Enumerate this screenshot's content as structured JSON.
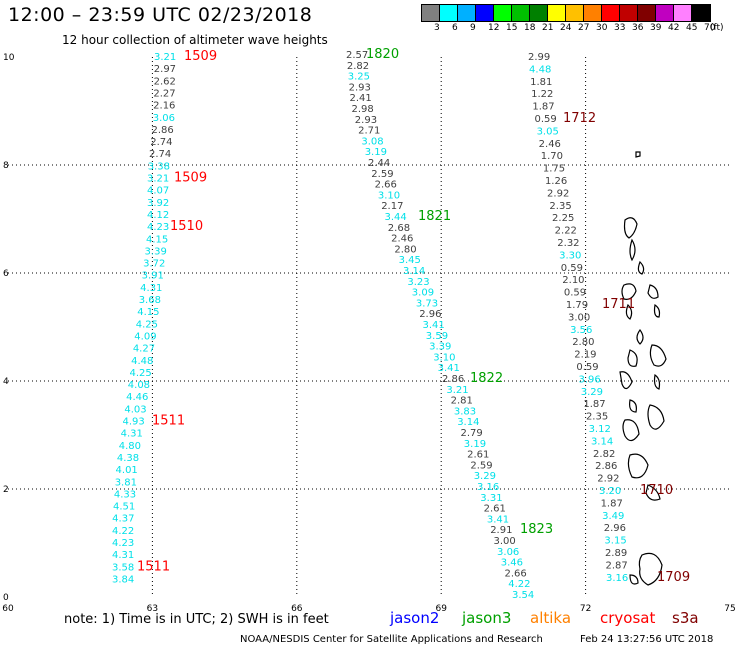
{
  "title": "12:00 – 23:59 UTC 02/23/2018",
  "subtitle": "12 hour collection of altimeter wave heights",
  "legend_scale": {
    "labels": [
      "3",
      "6",
      "9",
      "12",
      "15",
      "18",
      "21",
      "24",
      "27",
      "30",
      "33",
      "36",
      "39",
      "42",
      "45",
      "70",
      "(ft)"
    ],
    "colors": [
      "#808080",
      "#00ffff",
      "#00b0ff",
      "#0000ff",
      "#00ff00",
      "#00c000",
      "#008000",
      "#ffff00",
      "#ffc000",
      "#ff8000",
      "#ff0000",
      "#c00000",
      "#800000",
      "#c000c0",
      "#ff80ff",
      "#000000"
    ]
  },
  "chart_data": {
    "type": "scatter",
    "x_ticks": [
      "60",
      "63",
      "66",
      "69",
      "72",
      "75"
    ],
    "y_ticks": [
      "0",
      "2",
      "4",
      "6",
      "8",
      "10"
    ],
    "xlim": [
      60,
      75
    ],
    "ylim": [
      0,
      10
    ],
    "grid": true,
    "tracks": [
      {
        "values": [
          {
            "v": "3.21",
            "c": "cyan"
          },
          {
            "v": "2.97",
            "c": "gray"
          },
          {
            "v": "2.62",
            "c": "gray"
          },
          {
            "v": "2.27",
            "c": "gray"
          },
          {
            "v": "2.16",
            "c": "gray"
          },
          {
            "v": "3.06",
            "c": "cyan"
          },
          {
            "v": "2.86",
            "c": "gray"
          },
          {
            "v": "2.74",
            "c": "gray"
          },
          {
            "v": "2.74",
            "c": "gray"
          },
          {
            "v": "3.38",
            "c": "cyan"
          },
          {
            "v": "3.21",
            "c": "cyan"
          },
          {
            "v": "4.07",
            "c": "cyan"
          },
          {
            "v": "3.92",
            "c": "cyan"
          },
          {
            "v": "4.12",
            "c": "cyan"
          },
          {
            "v": "4.23",
            "c": "cyan"
          },
          {
            "v": "4.15",
            "c": "cyan"
          },
          {
            "v": "3.39",
            "c": "cyan"
          },
          {
            "v": "3.72",
            "c": "cyan"
          },
          {
            "v": "3.91",
            "c": "cyan"
          },
          {
            "v": "4.31",
            "c": "cyan"
          },
          {
            "v": "3.68",
            "c": "cyan"
          },
          {
            "v": "4.15",
            "c": "cyan"
          },
          {
            "v": "4.25",
            "c": "cyan"
          },
          {
            "v": "4.09",
            "c": "cyan"
          },
          {
            "v": "4.27",
            "c": "cyan"
          },
          {
            "v": "4.48",
            "c": "cyan"
          },
          {
            "v": "4.25",
            "c": "cyan"
          },
          {
            "v": "4.08",
            "c": "cyan"
          },
          {
            "v": "4.46",
            "c": "cyan"
          },
          {
            "v": "4.03",
            "c": "cyan"
          },
          {
            "v": "4.93",
            "c": "cyan"
          },
          {
            "v": "4.31",
            "c": "cyan"
          },
          {
            "v": "4.80",
            "c": "cyan"
          },
          {
            "v": "4.38",
            "c": "cyan"
          },
          {
            "v": "4.01",
            "c": "cyan"
          },
          {
            "v": "3.81",
            "c": "cyan"
          },
          {
            "v": "4.33",
            "c": "cyan"
          },
          {
            "v": "4.51",
            "c": "cyan"
          },
          {
            "v": "4.37",
            "c": "cyan"
          },
          {
            "v": "4.22",
            "c": "cyan"
          },
          {
            "v": "4.23",
            "c": "cyan"
          },
          {
            "v": "4.31",
            "c": "cyan"
          },
          {
            "v": "3.58",
            "c": "cyan"
          },
          {
            "v": "3.84",
            "c": "cyan"
          }
        ],
        "times": [
          {
            "t": "1509",
            "c": "red",
            "i": 0
          },
          {
            "t": "1509",
            "c": "red",
            "i": 10
          },
          {
            "t": "1510",
            "c": "red",
            "i": 14
          },
          {
            "t": "1511",
            "c": "red",
            "i": 30
          },
          {
            "t": "1511",
            "c": "red",
            "i": 42
          }
        ]
      },
      {
        "values": [
          {
            "v": "2.57",
            "c": "gray"
          },
          {
            "v": "2.82",
            "c": "gray"
          },
          {
            "v": "3.25",
            "c": "cyan"
          },
          {
            "v": "2.93",
            "c": "gray"
          },
          {
            "v": "2.41",
            "c": "gray"
          },
          {
            "v": "2.98",
            "c": "gray"
          },
          {
            "v": "2.93",
            "c": "gray"
          },
          {
            "v": "2.71",
            "c": "gray"
          },
          {
            "v": "3.08",
            "c": "cyan"
          },
          {
            "v": "3.19",
            "c": "cyan"
          },
          {
            "v": "2.44",
            "c": "gray"
          },
          {
            "v": "2.59",
            "c": "gray"
          },
          {
            "v": "2.66",
            "c": "gray"
          },
          {
            "v": "3.10",
            "c": "cyan"
          },
          {
            "v": "2.17",
            "c": "gray"
          },
          {
            "v": "3.44",
            "c": "cyan"
          },
          {
            "v": "2.68",
            "c": "gray"
          },
          {
            "v": "2.46",
            "c": "gray"
          },
          {
            "v": "2.80",
            "c": "gray"
          },
          {
            "v": "3.45",
            "c": "cyan"
          },
          {
            "v": "3.14",
            "c": "cyan"
          },
          {
            "v": "3.23",
            "c": "cyan"
          },
          {
            "v": "3.09",
            "c": "cyan"
          },
          {
            "v": "3.73",
            "c": "cyan"
          },
          {
            "v": "2.96",
            "c": "gray"
          },
          {
            "v": "3.41",
            "c": "cyan"
          },
          {
            "v": "3.59",
            "c": "cyan"
          },
          {
            "v": "3.39",
            "c": "cyan"
          },
          {
            "v": "3.10",
            "c": "cyan"
          },
          {
            "v": "3.41",
            "c": "cyan"
          },
          {
            "v": "2.86",
            "c": "gray"
          },
          {
            "v": "3.21",
            "c": "cyan"
          },
          {
            "v": "2.81",
            "c": "gray"
          },
          {
            "v": "3.83",
            "c": "cyan"
          },
          {
            "v": "3.14",
            "c": "cyan"
          },
          {
            "v": "2.79",
            "c": "gray"
          },
          {
            "v": "3.19",
            "c": "cyan"
          },
          {
            "v": "2.61",
            "c": "gray"
          },
          {
            "v": "2.59",
            "c": "gray"
          },
          {
            "v": "3.29",
            "c": "cyan"
          },
          {
            "v": "3.16",
            "c": "cyan"
          },
          {
            "v": "3.31",
            "c": "cyan"
          },
          {
            "v": "2.61",
            "c": "gray"
          },
          {
            "v": "3.41",
            "c": "cyan"
          },
          {
            "v": "2.91",
            "c": "gray"
          },
          {
            "v": "3.00",
            "c": "gray"
          },
          {
            "v": "3.06",
            "c": "cyan"
          },
          {
            "v": "3.46",
            "c": "cyan"
          },
          {
            "v": "2.66",
            "c": "gray"
          },
          {
            "v": "4.22",
            "c": "cyan"
          },
          {
            "v": "3.54",
            "c": "cyan"
          }
        ],
        "times": [
          {
            "t": "1820",
            "c": "green",
            "i": 0
          },
          {
            "t": "1821",
            "c": "green",
            "i": 15
          },
          {
            "t": "1822",
            "c": "green",
            "i": 30
          },
          {
            "t": "1823",
            "c": "green",
            "i": 44
          }
        ]
      },
      {
        "values": [
          {
            "v": "2.99",
            "c": "gray"
          },
          {
            "v": "4.48",
            "c": "cyan"
          },
          {
            "v": "1.81",
            "c": "gray"
          },
          {
            "v": "1.22",
            "c": "gray"
          },
          {
            "v": "1.87",
            "c": "gray"
          },
          {
            "v": "0.59",
            "c": "gray"
          },
          {
            "v": "3.05",
            "c": "cyan"
          },
          {
            "v": "2.46",
            "c": "gray"
          },
          {
            "v": "1.70",
            "c": "gray"
          },
          {
            "v": "1.75",
            "c": "gray"
          },
          {
            "v": "1.26",
            "c": "gray"
          },
          {
            "v": "2.92",
            "c": "gray"
          },
          {
            "v": "2.35",
            "c": "gray"
          },
          {
            "v": "2.25",
            "c": "gray"
          },
          {
            "v": "2.22",
            "c": "gray"
          },
          {
            "v": "2.32",
            "c": "gray"
          },
          {
            "v": "3.30",
            "c": "cyan"
          },
          {
            "v": "0.59",
            "c": "gray"
          },
          {
            "v": "2.10",
            "c": "gray"
          },
          {
            "v": "0.59",
            "c": "gray"
          },
          {
            "v": "1.79",
            "c": "gray"
          },
          {
            "v": "3.00",
            "c": "gray"
          },
          {
            "v": "3.56",
            "c": "cyan"
          },
          {
            "v": "2.80",
            "c": "gray"
          },
          {
            "v": "2.19",
            "c": "gray"
          },
          {
            "v": "0.59",
            "c": "gray"
          },
          {
            "v": "3.96",
            "c": "cyan"
          },
          {
            "v": "3.29",
            "c": "cyan"
          },
          {
            "v": "1.87",
            "c": "gray"
          },
          {
            "v": "2.35",
            "c": "gray"
          },
          {
            "v": "3.12",
            "c": "cyan"
          },
          {
            "v": "3.14",
            "c": "cyan"
          },
          {
            "v": "2.82",
            "c": "gray"
          },
          {
            "v": "2.86",
            "c": "gray"
          },
          {
            "v": "2.92",
            "c": "gray"
          },
          {
            "v": "3.20",
            "c": "cyan"
          },
          {
            "v": "1.87",
            "c": "gray"
          },
          {
            "v": "3.49",
            "c": "cyan"
          },
          {
            "v": "2.96",
            "c": "gray"
          },
          {
            "v": "3.15",
            "c": "cyan"
          },
          {
            "v": "2.89",
            "c": "gray"
          },
          {
            "v": "2.87",
            "c": "gray"
          },
          {
            "v": "3.16",
            "c": "cyan"
          }
        ],
        "times": [
          {
            "t": "1712",
            "c": "darkred",
            "i": 5
          },
          {
            "t": "1711",
            "c": "darkred",
            "i": 20
          },
          {
            "t": "1710",
            "c": "darkred",
            "i": 35
          },
          {
            "t": "1709",
            "c": "darkred",
            "i": 42
          }
        ]
      }
    ]
  },
  "note": "note: 1) Time is in UTC; 2) SWH is in feet",
  "satellites": [
    {
      "name": "jason2",
      "color": "#0000ff"
    },
    {
      "name": "jason3",
      "color": "#00a000"
    },
    {
      "name": "altika",
      "color": "#ff8000"
    },
    {
      "name": "cryosat",
      "color": "#ff0000"
    },
    {
      "name": "s3a",
      "color": "#800000"
    }
  ],
  "credit": "NOAA/NESDIS Center for Satellite Applications and Research",
  "timestamp": "Feb 24 13:27:56 UTC 2018"
}
